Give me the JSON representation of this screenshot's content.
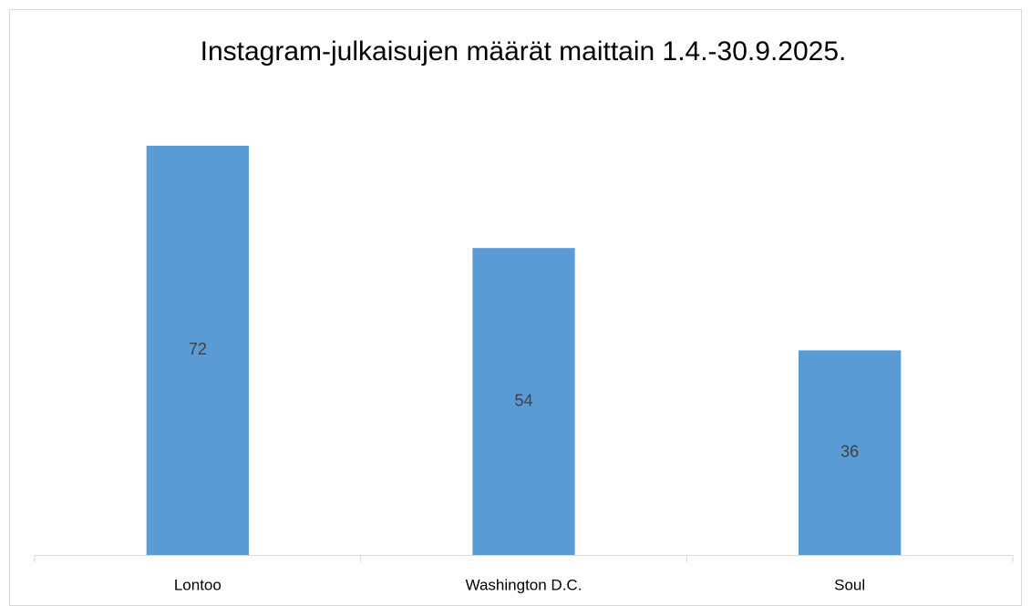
{
  "chart_data": {
    "type": "bar",
    "title": "Instagram-julkaisujen määrät maittain 1.4.-30.9.2025.",
    "categories": [
      "Lontoo",
      "Washington D.C.",
      "Soul"
    ],
    "values": [
      72,
      54,
      36
    ],
    "color": "#5b9bd5",
    "ylim": [
      0,
      80
    ]
  }
}
